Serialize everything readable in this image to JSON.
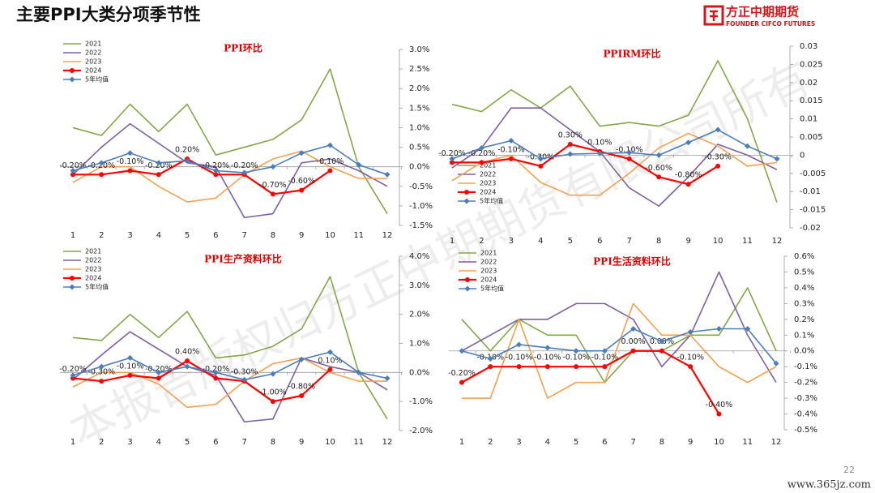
{
  "header": {
    "title": "主要PPI大类分项季节性",
    "logo_cn": "方正中期期货",
    "logo_en": "FOUNDER CIFCO FUTURES"
  },
  "watermark": "本报告版权归方正中期期货有限公司所有",
  "site_watermark": "www.365jz.com",
  "page_number": "22",
  "chart_data": [
    {
      "type": "line",
      "title": "PPI环比",
      "legend": "upper left",
      "categories": [
        1,
        2,
        3,
        4,
        5,
        6,
        7,
        8,
        9,
        10,
        11,
        12
      ],
      "ylim": [
        -1.5,
        3.0
      ],
      "yticks": [
        {
          "value": -1.5,
          "label": "-1.5%"
        },
        {
          "value": -1.0,
          "label": "-1.0%"
        },
        {
          "value": -0.5,
          "label": "-0.5%"
        },
        {
          "value": 0,
          "label": "0.0%"
        },
        {
          "value": 0.5,
          "label": "0.5%"
        },
        {
          "value": 1.0,
          "label": "1.0%"
        },
        {
          "value": 1.5,
          "label": "1.5%"
        },
        {
          "value": 2.0,
          "label": "2.0%"
        },
        {
          "value": 2.5,
          "label": "2.5%"
        },
        {
          "value": 3.0,
          "label": "3.0%"
        }
      ],
      "series": [
        {
          "name": "2021",
          "color": "#82a847",
          "values": [
            1.0,
            0.8,
            1.6,
            0.9,
            1.6,
            0.3,
            0.5,
            0.7,
            1.2,
            2.5,
            0.0,
            -1.2
          ]
        },
        {
          "name": "2022",
          "color": "#7d5fa8",
          "values": [
            -0.2,
            0.5,
            1.1,
            0.6,
            0.1,
            0.0,
            -1.3,
            -1.2,
            0.1,
            0.2,
            -0.1,
            -0.5
          ]
        },
        {
          "name": "2023",
          "color": "#f5a04f",
          "values": [
            -0.4,
            0.0,
            0.0,
            -0.5,
            -0.9,
            -0.8,
            -0.2,
            0.2,
            0.4,
            0.0,
            -0.3,
            -0.3
          ]
        },
        {
          "name": "2024",
          "color": "#ff0000",
          "marker": "circle",
          "values": [
            -0.2,
            -0.2,
            -0.1,
            -0.2,
            0.2,
            -0.2,
            -0.2,
            -0.7,
            -0.6,
            -0.1,
            null,
            null
          ],
          "value_labels": [
            "-0.20%",
            "-0.20%",
            "-0.10%",
            "-0.20%",
            "0.20%",
            "-0.20%",
            "-0.20%",
            "-0.70%",
            "-0.60%",
            "-0.10%",
            null,
            null
          ]
        },
        {
          "name": "5年均值",
          "color": "#4a7ebb",
          "marker": "diamond",
          "values": [
            -0.1,
            0.1,
            0.35,
            0.1,
            0.15,
            -0.1,
            -0.15,
            0.0,
            0.35,
            0.55,
            0.05,
            -0.2
          ]
        }
      ]
    },
    {
      "type": "line",
      "title": "PPIRM环比",
      "legend": "lower left",
      "categories": [
        1,
        2,
        3,
        4,
        5,
        6,
        7,
        8,
        9,
        10,
        11,
        12
      ],
      "ylim": [
        -0.02,
        0.03
      ],
      "yticks": [
        -0.02,
        -0.015,
        -0.01,
        -0.005,
        0,
        0.005,
        0.01,
        0.015,
        0.02,
        0.025,
        0.03
      ],
      "series": [
        {
          "name": "2021",
          "color": "#82a847",
          "values": [
            0.014,
            0.012,
            0.018,
            0.013,
            0.019,
            0.008,
            0.009,
            0.008,
            0.011,
            0.026,
            0.01,
            -0.013
          ]
        },
        {
          "name": "2022",
          "color": "#7d5fa8",
          "values": [
            -0.0035,
            0.002,
            0.013,
            0.013,
            0.007,
            0.001,
            -0.009,
            -0.014,
            -0.006,
            0.003,
            0.0,
            -0.004
          ]
        },
        {
          "name": "2023",
          "color": "#f5a04f",
          "values": [
            -0.007,
            -0.002,
            0.0,
            -0.0075,
            -0.011,
            -0.011,
            -0.005,
            0.002,
            0.006,
            0.0025,
            -0.003,
            -0.002
          ]
        },
        {
          "name": "2024",
          "color": "#ff0000",
          "marker": "circle",
          "values": [
            -0.002,
            -0.002,
            -0.001,
            -0.003,
            0.003,
            0.001,
            -0.001,
            -0.006,
            -0.008,
            -0.003,
            null,
            null
          ],
          "value_labels": [
            "-0.20%",
            "-0.20%",
            "-0.10%",
            "-0.30%",
            "0.30%",
            "0.10%",
            "-0.10%",
            "-0.60%",
            "-0.80%",
            "-0.30%",
            null,
            null
          ]
        },
        {
          "name": "5年均值",
          "color": "#4a7ebb",
          "marker": "diamond",
          "values": [
            -0.001,
            0.002,
            0.004,
            -0.001,
            0.0003,
            0.0005,
            0.0007,
            0.0,
            0.0035,
            0.007,
            0.0025,
            -0.001
          ]
        }
      ]
    },
    {
      "type": "line",
      "title": "PPI生产资料环比",
      "legend": "upper left",
      "categories": [
        1,
        2,
        3,
        4,
        5,
        6,
        7,
        8,
        9,
        10,
        11,
        12
      ],
      "ylim": [
        -2.0,
        4.0
      ],
      "yticks": [
        {
          "value": -2.0,
          "label": "-2.0%"
        },
        {
          "value": -1.0,
          "label": "-1.0%"
        },
        {
          "value": 0,
          "label": "0.0%"
        },
        {
          "value": 1.0,
          "label": "1.0%"
        },
        {
          "value": 2.0,
          "label": "2.0%"
        },
        {
          "value": 3.0,
          "label": "3.0%"
        },
        {
          "value": 4.0,
          "label": "4.0%"
        }
      ],
      "series": [
        {
          "name": "2021",
          "color": "#82a847",
          "values": [
            1.2,
            1.1,
            2.0,
            1.2,
            2.1,
            0.5,
            0.6,
            0.9,
            1.5,
            3.3,
            0.0,
            -1.6
          ]
        },
        {
          "name": "2022",
          "color": "#7d5fa8",
          "values": [
            -0.25,
            0.6,
            1.4,
            0.8,
            0.2,
            -0.1,
            -1.7,
            -1.6,
            0.5,
            0.2,
            0.0,
            -0.6
          ]
        },
        {
          "name": "2023",
          "color": "#f5a04f",
          "values": [
            -0.5,
            0.0,
            0.0,
            -0.4,
            -1.2,
            -1.1,
            -0.3,
            0.3,
            0.5,
            0.0,
            -0.3,
            -0.3
          ]
        },
        {
          "name": "2024",
          "color": "#ff0000",
          "marker": "circle",
          "values": [
            -0.2,
            -0.3,
            -0.1,
            -0.2,
            0.4,
            -0.2,
            -0.3,
            -1.0,
            -0.8,
            0.1,
            null,
            null
          ],
          "value_labels": [
            "-0.20%",
            "-0.30%",
            "-0.10%",
            "-0.20%",
            "0.40%",
            "-0.20%",
            "-0.30%",
            "-1.00%",
            "-0.80%",
            "0.10%",
            null,
            null
          ]
        },
        {
          "name": "5年均值",
          "color": "#4a7ebb",
          "marker": "diamond",
          "values": [
            -0.1,
            0.2,
            0.5,
            0.0,
            0.2,
            0.0,
            -0.25,
            -0.05,
            0.45,
            0.7,
            0.0,
            -0.2
          ]
        }
      ]
    },
    {
      "type": "line",
      "title": "PPI生活资料环比",
      "legend": "upper left",
      "categories": [
        1,
        2,
        3,
        4,
        5,
        6,
        7,
        8,
        9,
        10,
        11,
        12
      ],
      "ylim": [
        -0.5,
        0.6
      ],
      "yticks": [
        {
          "value": -0.5,
          "label": "-0.5%"
        },
        {
          "value": -0.4,
          "label": "-0.4%"
        },
        {
          "value": -0.3,
          "label": "-0.3%"
        },
        {
          "value": -0.2,
          "label": "-0.2%"
        },
        {
          "value": -0.1,
          "label": "-0.1%"
        },
        {
          "value": 0,
          "label": "0.0%"
        },
        {
          "value": 0.1,
          "label": "0.1%"
        },
        {
          "value": 0.2,
          "label": "0.2%"
        },
        {
          "value": 0.3,
          "label": "0.3%"
        },
        {
          "value": 0.4,
          "label": "0.4%"
        },
        {
          "value": 0.5,
          "label": "0.5%"
        },
        {
          "value": 0.6,
          "label": "0.6%"
        }
      ],
      "series": [
        {
          "name": "2021",
          "color": "#82a847",
          "values": [
            0.2,
            0.0,
            0.2,
            0.1,
            0.1,
            -0.2,
            0.0,
            0.0,
            0.1,
            0.1,
            0.4,
            0.0
          ]
        },
        {
          "name": "2022",
          "color": "#7d5fa8",
          "values": [
            0.0,
            0.1,
            0.2,
            0.2,
            0.3,
            0.3,
            0.2,
            -0.1,
            0.1,
            0.5,
            0.1,
            -0.2
          ]
        },
        {
          "name": "2023",
          "color": "#f5a04f",
          "values": [
            -0.3,
            -0.3,
            0.2,
            -0.3,
            -0.2,
            -0.2,
            0.3,
            0.1,
            0.1,
            -0.1,
            -0.2,
            -0.1
          ]
        },
        {
          "name": "2024",
          "color": "#ff0000",
          "marker": "circle",
          "values": [
            -0.2,
            -0.1,
            -0.1,
            -0.1,
            -0.1,
            -0.1,
            0.0,
            0.0,
            -0.1,
            -0.4,
            null,
            null
          ],
          "value_labels": [
            "-0.20%",
            "-0.10%",
            "-0.10%",
            "-0.10%",
            "-0.10%",
            "-0.10%",
            "0.00%",
            "0.00%",
            "-0.10%",
            "-0.40%",
            null,
            null
          ]
        },
        {
          "name": "5年均值",
          "color": "#4a7ebb",
          "marker": "diamond",
          "values": [
            0.0,
            -0.05,
            0.04,
            0.02,
            0.0,
            0.0,
            0.14,
            0.06,
            0.12,
            0.14,
            0.14,
            -0.08
          ]
        }
      ]
    }
  ]
}
